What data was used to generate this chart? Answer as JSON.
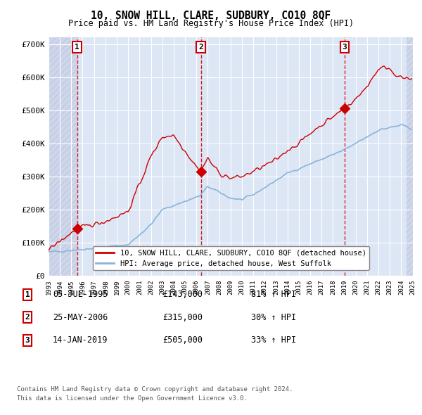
{
  "title": "10, SNOW HILL, CLARE, SUDBURY, CO10 8QF",
  "subtitle": "Price paid vs. HM Land Registry's House Price Index (HPI)",
  "sale_prices": [
    143000,
    315000,
    505000
  ],
  "sale_labels": [
    "1",
    "2",
    "3"
  ],
  "sale_pct": [
    "81% ↑ HPI",
    "30% ↑ HPI",
    "33% ↑ HPI"
  ],
  "sale_date_labels": [
    "05-JUL-1995",
    "25-MAY-2006",
    "14-JAN-2019"
  ],
  "sale_price_labels": [
    "£143,000",
    "£315,000",
    "£505,000"
  ],
  "legend_red": "10, SNOW HILL, CLARE, SUDBURY, CO10 8QF (detached house)",
  "legend_blue": "HPI: Average price, detached house, West Suffolk",
  "footer1": "Contains HM Land Registry data © Crown copyright and database right 2024.",
  "footer2": "This data is licensed under the Open Government Licence v3.0.",
  "plot_bg": "#dce6f5",
  "hatch_bg": "#c8d0e8",
  "grid_color": "#ffffff",
  "red_color": "#cc0000",
  "blue_color": "#8ab4d8",
  "box_color": "#cc0000",
  "ylim": [
    0,
    720000
  ],
  "yticks": [
    0,
    100000,
    200000,
    300000,
    400000,
    500000,
    600000,
    700000
  ],
  "ytick_labels": [
    "£0",
    "£100K",
    "£200K",
    "£300K",
    "£400K",
    "£500K",
    "£600K",
    "£700K"
  ]
}
